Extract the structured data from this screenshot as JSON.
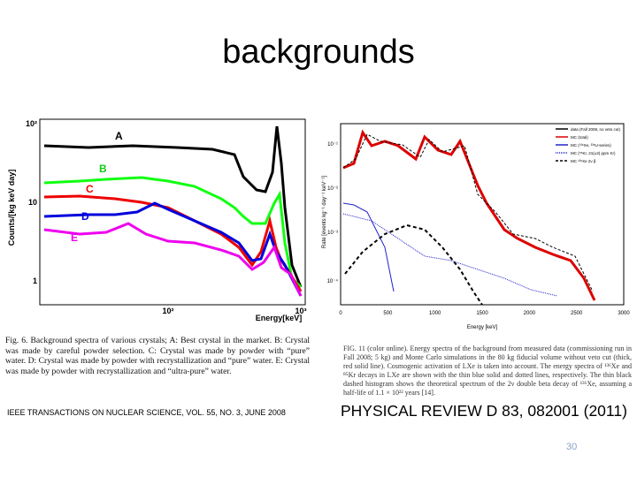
{
  "slide": {
    "title": "backgrounds",
    "left_figure": {
      "y_axis_label": "Counts/[kg keV day]",
      "x_axis_label": "Energy[keV]",
      "y_ticks": [
        "10²",
        "10",
        "1"
      ],
      "x_ticks": [
        "10²",
        "10³"
      ],
      "curve_labels": [
        "A",
        "B",
        "C",
        "D",
        "E"
      ],
      "caption": "Fig. 6.   Background spectra of various crystals; A: Best crystal in the market. B: Crystal was made by careful powder selection. C: Crystal was made by powder with “pure” water. D: Crystal was made by powder with recrystallization and “pure” water. E: Crystal was made by powder with recrystallization and “ultra-pure” water.",
      "citation": "IEEE TRANSACTIONS ON NUCLEAR SCIENCE, VOL. 55, NO. 3, JUNE 2008"
    },
    "right_figure": {
      "y_axis_label": "Rate [events kg⁻¹ day⁻¹ keV⁻¹]",
      "x_axis_label": "Energy [keV]",
      "x_ticks": [
        "0",
        "500",
        "1000",
        "1500",
        "2000",
        "2500",
        "3000"
      ],
      "y_ticks": [
        "10⁻¹",
        "10⁻²",
        "10⁻³",
        "10⁻⁴"
      ],
      "legend": [
        "data (Fall 2008, no veto cut)",
        "MC (total)",
        "MC (¹³⁶Xe, ²³⁸U-series)",
        "MC (⁸⁵Kr, 21(±3) ppm Kr)",
        "MC ¹³⁶Xe 2ν β"
      ],
      "caption": "FIG. 11 (color online).   Energy spectra of the background from measured data (commissioning run in Fall 2008; 5 kg) and Monte Carlo simulations in the 80 kg fiducial volume without veto cut (thick, red solid line). Cosmogenic activation of LXe is taken into account. The energy spectra of ¹³⁶Xe and ⁸⁵Kr decays in LXe are shown with the thin blue solid and dotted lines, respectively. The thin black dashed histogram shows the theoretical spectrum of the 2ν double beta decay of ¹³⁶Xe, assuming a half-life of 1.1 × 10²² years [14].",
      "citation": "PHYSICAL REVIEW D 83, 082001 (2011)"
    },
    "page_number": "30"
  }
}
